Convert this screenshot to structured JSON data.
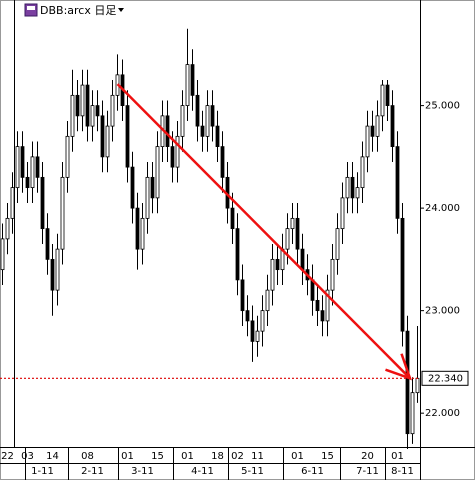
{
  "chart_data": {
    "type": "candlestick",
    "title": "DBB:arcx 日足",
    "ylim": [
      21.67,
      26.03
    ],
    "yticks": [
      {
        "value": 22,
        "label": "22.000"
      },
      {
        "value": 23,
        "label": "23.000"
      },
      {
        "value": 24,
        "label": "24.000"
      },
      {
        "value": 25,
        "label": "25.000"
      }
    ],
    "categories": [
      null,
      "22",
      null,
      null,
      null,
      "03",
      null,
      null,
      null,
      null,
      "14",
      null,
      null,
      null,
      null,
      null,
      null,
      "08",
      null,
      null,
      null,
      null,
      null,
      null,
      null,
      "01",
      null,
      null,
      null,
      null,
      null,
      "15",
      null,
      null,
      null,
      null,
      null,
      "01",
      null,
      null,
      null,
      null,
      null,
      "18",
      null,
      null,
      null,
      "02",
      null,
      null,
      null,
      "11",
      null,
      null,
      null,
      null,
      null,
      null,
      null,
      "01",
      null,
      null,
      null,
      null,
      null,
      "15",
      null,
      null,
      null,
      null,
      null,
      null,
      null,
      "20",
      null,
      null,
      null,
      null,
      null,
      "01",
      null,
      null,
      null,
      null
    ],
    "category_months": [
      null,
      null,
      null,
      null,
      null,
      null,
      null,
      null,
      "1-11",
      null,
      null,
      null,
      null,
      null,
      null,
      null,
      null,
      null,
      "2-11",
      null,
      null,
      null,
      null,
      null,
      null,
      null,
      null,
      null,
      "3-11",
      null,
      null,
      null,
      null,
      null,
      null,
      null,
      null,
      null,
      null,
      null,
      "4-11",
      null,
      null,
      null,
      null,
      null,
      null,
      null,
      null,
      null,
      "5-11",
      null,
      null,
      null,
      null,
      null,
      null,
      null,
      null,
      null,
      null,
      null,
      "6-11",
      null,
      null,
      null,
      null,
      null,
      null,
      null,
      null,
      null,
      null,
      "7-11",
      null,
      null,
      null,
      null,
      null,
      null,
      "8-11",
      null,
      null,
      null
    ],
    "open": [
      23.4,
      23.7,
      23.9,
      24.2,
      24.6,
      24.3,
      24.2,
      24.5,
      24.3,
      23.8,
      23.5,
      23.2,
      23.6,
      24.3,
      24.7,
      25.1,
      24.9,
      25.2,
      24.8,
      25.0,
      24.9,
      24.5,
      24.8,
      25.1,
      25.3,
      25.0,
      24.4,
      24.0,
      23.6,
      23.9,
      24.3,
      24.1,
      24.6,
      24.9,
      24.6,
      24.4,
      24.7,
      25.0,
      25.4,
      25.1,
      24.8,
      24.7,
      25.0,
      24.8,
      24.6,
      24.3,
      24.0,
      23.8,
      23.3,
      23.0,
      22.9,
      22.7,
      22.8,
      23.0,
      23.2,
      23.5,
      23.4,
      23.6,
      23.8,
      23.9,
      23.6,
      23.4,
      23.3,
      23.1,
      23.0,
      22.9,
      23.2,
      23.5,
      23.8,
      24.1,
      24.3,
      24.1,
      24.2,
      24.5,
      24.8,
      24.7,
      24.9,
      25.2,
      25.0,
      24.6,
      23.9,
      22.8,
      21.8,
      22.2
    ],
    "high": [
      23.85,
      24.05,
      24.35,
      24.75,
      24.75,
      24.45,
      24.65,
      24.65,
      24.45,
      23.95,
      23.65,
      23.75,
      24.45,
      24.85,
      25.35,
      25.25,
      25.35,
      25.35,
      25.15,
      25.15,
      25.05,
      24.95,
      25.25,
      25.5,
      25.45,
      25.15,
      24.55,
      24.15,
      24.05,
      24.45,
      24.45,
      24.75,
      25.05,
      25.05,
      24.75,
      24.85,
      25.15,
      25.75,
      25.55,
      25.25,
      24.95,
      25.15,
      25.15,
      24.95,
      24.75,
      24.45,
      24.15,
      23.95,
      23.45,
      23.15,
      23.05,
      22.95,
      23.15,
      23.35,
      23.65,
      23.65,
      23.75,
      23.95,
      24.05,
      24.05,
      23.75,
      23.55,
      23.45,
      23.25,
      23.15,
      23.35,
      23.65,
      23.95,
      24.25,
      24.45,
      24.45,
      24.35,
      24.65,
      24.95,
      24.95,
      25.05,
      25.25,
      25.25,
      25.15,
      24.75,
      24.05,
      22.95,
      22.35,
      22.85
    ],
    "low": [
      23.25,
      23.55,
      23.75,
      24.05,
      24.15,
      24.05,
      24.05,
      24.15,
      23.65,
      23.35,
      22.95,
      23.05,
      23.45,
      24.15,
      24.55,
      24.75,
      24.75,
      24.65,
      24.65,
      24.75,
      24.35,
      24.35,
      24.65,
      24.95,
      24.85,
      24.25,
      23.85,
      23.4,
      23.45,
      23.75,
      23.95,
      23.95,
      24.45,
      24.45,
      24.25,
      24.25,
      24.55,
      24.85,
      24.95,
      24.65,
      24.55,
      24.55,
      24.65,
      24.45,
      24.15,
      23.85,
      23.65,
      23.15,
      22.85,
      22.75,
      22.5,
      22.55,
      22.65,
      22.85,
      23.05,
      23.25,
      23.25,
      23.45,
      23.65,
      23.45,
      23.25,
      23.15,
      22.95,
      22.85,
      22.75,
      22.75,
      23.05,
      23.35,
      23.65,
      23.95,
      23.95,
      23.95,
      24.05,
      24.35,
      24.55,
      24.55,
      24.75,
      24.85,
      24.45,
      23.75,
      22.65,
      21.65,
      21.7,
      22.1
    ],
    "close": [
      23.7,
      23.9,
      24.2,
      24.6,
      24.3,
      24.2,
      24.5,
      24.3,
      23.8,
      23.5,
      23.2,
      23.6,
      24.3,
      24.7,
      25.1,
      24.9,
      25.2,
      24.8,
      25.0,
      24.9,
      24.5,
      24.8,
      25.1,
      25.3,
      25.0,
      24.4,
      24.0,
      23.6,
      23.9,
      24.3,
      24.1,
      24.6,
      24.9,
      24.6,
      24.4,
      24.7,
      25.0,
      25.4,
      25.1,
      24.8,
      24.7,
      25.0,
      24.8,
      24.6,
      24.3,
      24.0,
      23.8,
      23.3,
      23.0,
      22.9,
      22.7,
      22.8,
      23.0,
      23.2,
      23.5,
      23.4,
      23.6,
      23.8,
      23.9,
      23.6,
      23.4,
      23.3,
      23.1,
      23.0,
      22.9,
      23.2,
      23.5,
      23.8,
      24.1,
      24.3,
      24.1,
      24.2,
      24.5,
      24.8,
      24.7,
      24.9,
      25.2,
      25.0,
      24.6,
      23.9,
      22.8,
      21.8,
      22.2,
      22.34
    ],
    "current_price": {
      "value": 22.34,
      "label": "22.340"
    },
    "current_price_color": "#dd0000",
    "trendline": {
      "x": [
        23,
        81.5
      ],
      "y": [
        25.21,
        22.34
      ],
      "color": "#ee1111"
    },
    "up_color": "#ffffff",
    "down_color": "#000000"
  }
}
